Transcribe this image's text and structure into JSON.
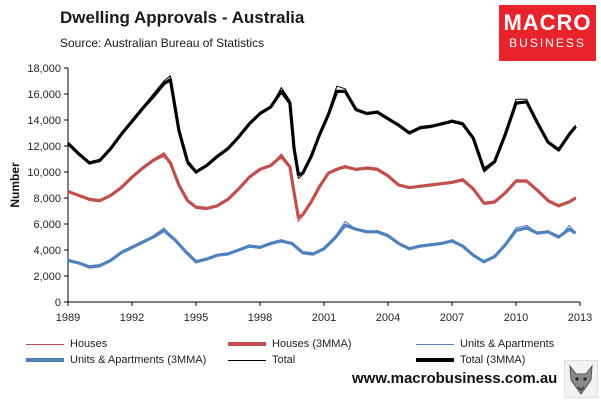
{
  "header": {
    "title": "Dwelling Approvals - Australia",
    "subtitle": "Source:  Australian Bureau of Statistics"
  },
  "logo": {
    "line1": "MACRO",
    "line2": "BUSINESS",
    "color": "#e8232c"
  },
  "footer": {
    "website": "www.macrobusiness.com.au",
    "mascot_icon": "wolf-icon"
  },
  "legend": [
    {
      "label": "Houses",
      "color": "#c0504d",
      "weight": "thin"
    },
    {
      "label": "Houses (3MMA)",
      "color": "#c0504d",
      "weight": "thick"
    },
    {
      "label": "Units & Apartments",
      "color": "#4f81bd",
      "weight": "thin"
    },
    {
      "label": "Units & Apartments (3MMA)",
      "color": "#4f81bd",
      "weight": "thick"
    },
    {
      "label": "Total",
      "color": "#000000",
      "weight": "thin"
    },
    {
      "label": "Total (3MMA)",
      "color": "#000000",
      "weight": "thick"
    }
  ],
  "chart_data": {
    "type": "line",
    "title": "Dwelling Approvals - Australia",
    "xlabel": "",
    "ylabel": "Number",
    "xlim": [
      1989,
      2013
    ],
    "ylim": [
      0,
      18000
    ],
    "xticks": [
      1989,
      1992,
      1995,
      1998,
      2001,
      2004,
      2007,
      2010,
      2013
    ],
    "yticks": [
      0,
      2000,
      4000,
      6000,
      8000,
      10000,
      12000,
      14000,
      16000,
      18000
    ],
    "ytick_labels": [
      "0",
      "2,000",
      "4,000",
      "6,000",
      "8,000",
      "10,000",
      "12,000",
      "14,000",
      "16,000",
      "18,000"
    ],
    "grid": false,
    "legend_position": "bottom",
    "series": [
      {
        "name": "Houses",
        "color": "#c0504d",
        "x": [
          1989.0,
          1989.5,
          1990.0,
          1990.5,
          1991.0,
          1991.5,
          1992.0,
          1992.5,
          1993.0,
          1993.5,
          1993.8,
          1994.2,
          1994.6,
          1995.0,
          1995.5,
          1996.0,
          1996.5,
          1997.0,
          1997.5,
          1998.0,
          1998.5,
          1999.0,
          1999.4,
          1999.6,
          1999.8,
          2000.0,
          2000.4,
          2000.8,
          2001.2,
          2001.6,
          2002.0,
          2002.5,
          2003.0,
          2003.5,
          2004.0,
          2004.5,
          2005.0,
          2005.5,
          2006.0,
          2006.5,
          2007.0,
          2007.5,
          2008.0,
          2008.5,
          2009.0,
          2009.5,
          2010.0,
          2010.5,
          2011.0,
          2011.5,
          2012.0,
          2012.5,
          2012.8
        ],
        "y": [
          8600,
          8200,
          7800,
          7700,
          8200,
          8900,
          9700,
          10400,
          11000,
          11500,
          10800,
          9000,
          7700,
          7200,
          7100,
          7400,
          7900,
          8700,
          9700,
          10300,
          10500,
          11400,
          10500,
          8200,
          6200,
          6600,
          7700,
          9000,
          10000,
          10300,
          10500,
          10200,
          10400,
          10300,
          9800,
          9000,
          8800,
          9000,
          9000,
          9100,
          9200,
          9500,
          8700,
          7500,
          7600,
          8400,
          9400,
          9400,
          8600,
          7700,
          7300,
          7700,
          8100
        ]
      },
      {
        "name": "Houses (3MMA)",
        "color": "#c0504d",
        "x": [
          1989.0,
          1989.5,
          1990.0,
          1990.5,
          1991.0,
          1991.5,
          1992.0,
          1992.5,
          1993.0,
          1993.5,
          1993.8,
          1994.2,
          1994.6,
          1995.0,
          1995.5,
          1996.0,
          1996.5,
          1997.0,
          1997.5,
          1998.0,
          1998.5,
          1999.0,
          1999.4,
          1999.6,
          1999.8,
          2000.0,
          2000.4,
          2000.8,
          2001.2,
          2001.6,
          2002.0,
          2002.5,
          2003.0,
          2003.5,
          2004.0,
          2004.5,
          2005.0,
          2005.5,
          2006.0,
          2006.5,
          2007.0,
          2007.5,
          2008.0,
          2008.5,
          2009.0,
          2009.5,
          2010.0,
          2010.5,
          2011.0,
          2011.5,
          2012.0,
          2012.5,
          2012.8
        ],
        "y": [
          8500,
          8200,
          7900,
          7800,
          8200,
          8800,
          9600,
          10300,
          10900,
          11300,
          10700,
          9000,
          7800,
          7300,
          7200,
          7400,
          7900,
          8700,
          9600,
          10200,
          10500,
          11200,
          10400,
          8400,
          6500,
          6700,
          7700,
          8900,
          9900,
          10200,
          10400,
          10200,
          10300,
          10200,
          9700,
          9000,
          8800,
          8900,
          9000,
          9100,
          9200,
          9400,
          8700,
          7600,
          7700,
          8400,
          9300,
          9300,
          8600,
          7800,
          7400,
          7700,
          8000
        ]
      },
      {
        "name": "Units & Apartments",
        "color": "#4f81bd",
        "x": [
          1989.0,
          1989.5,
          1990.0,
          1990.5,
          1991.0,
          1991.5,
          1992.0,
          1992.5,
          1993.0,
          1993.5,
          1994.0,
          1994.5,
          1995.0,
          1995.5,
          1996.0,
          1996.5,
          1997.0,
          1997.5,
          1998.0,
          1998.5,
          1999.0,
          1999.5,
          2000.0,
          2000.5,
          2001.0,
          2001.5,
          2002.0,
          2002.5,
          2003.0,
          2003.5,
          2004.0,
          2004.5,
          2005.0,
          2005.5,
          2006.0,
          2006.5,
          2007.0,
          2007.5,
          2008.0,
          2008.5,
          2009.0,
          2009.5,
          2010.0,
          2010.5,
          2011.0,
          2011.5,
          2012.0,
          2012.5,
          2012.8
        ],
        "y": [
          3300,
          3000,
          2600,
          2700,
          3200,
          3900,
          4300,
          4700,
          5100,
          5700,
          4800,
          3800,
          3000,
          3300,
          3600,
          3700,
          4000,
          4400,
          4200,
          4600,
          4800,
          4500,
          3700,
          3600,
          4100,
          5000,
          6200,
          5600,
          5400,
          5500,
          5200,
          4500,
          4000,
          4300,
          4400,
          4500,
          4800,
          4300,
          3600,
          3000,
          3500,
          4500,
          5700,
          5900,
          5300,
          5500,
          4900,
          5900,
          5300
        ]
      },
      {
        "name": "Units & Apartments (3MMA)",
        "color": "#4f81bd",
        "x": [
          1989.0,
          1989.5,
          1990.0,
          1990.5,
          1991.0,
          1991.5,
          1992.0,
          1992.5,
          1993.0,
          1993.5,
          1994.0,
          1994.5,
          1995.0,
          1995.5,
          1996.0,
          1996.5,
          1997.0,
          1997.5,
          1998.0,
          1998.5,
          1999.0,
          1999.5,
          2000.0,
          2000.5,
          2001.0,
          2001.5,
          2002.0,
          2002.5,
          2003.0,
          2003.5,
          2004.0,
          2004.5,
          2005.0,
          2005.5,
          2006.0,
          2006.5,
          2007.0,
          2007.5,
          2008.0,
          2008.5,
          2009.0,
          2009.5,
          2010.0,
          2010.5,
          2011.0,
          2011.5,
          2012.0,
          2012.5,
          2012.8
        ],
        "y": [
          3200,
          3000,
          2700,
          2800,
          3200,
          3800,
          4200,
          4600,
          5000,
          5500,
          4800,
          3900,
          3100,
          3300,
          3600,
          3700,
          4000,
          4300,
          4200,
          4500,
          4700,
          4500,
          3800,
          3700,
          4100,
          4900,
          5900,
          5600,
          5400,
          5400,
          5100,
          4500,
          4100,
          4300,
          4400,
          4500,
          4700,
          4300,
          3600,
          3100,
          3500,
          4400,
          5500,
          5700,
          5300,
          5400,
          5000,
          5600,
          5300
        ]
      },
      {
        "name": "Total",
        "color": "#000000",
        "x": [
          1989.0,
          1989.5,
          1990.0,
          1990.5,
          1991.0,
          1991.5,
          1992.0,
          1992.5,
          1993.0,
          1993.5,
          1993.8,
          1994.2,
          1994.6,
          1995.0,
          1995.5,
          1996.0,
          1996.5,
          1997.0,
          1997.5,
          1998.0,
          1998.5,
          1999.0,
          1999.4,
          1999.6,
          1999.8,
          2000.0,
          2000.4,
          2000.8,
          2001.2,
          2001.6,
          2002.0,
          2002.5,
          2003.0,
          2003.5,
          2004.0,
          2004.5,
          2005.0,
          2005.5,
          2006.0,
          2006.5,
          2007.0,
          2007.5,
          2008.0,
          2008.5,
          2009.0,
          2009.5,
          2010.0,
          2010.5,
          2011.0,
          2011.5,
          2012.0,
          2012.5,
          2012.8
        ],
        "y": [
          12300,
          11400,
          10600,
          10800,
          11800,
          13000,
          14000,
          15000,
          16000,
          17000,
          17400,
          13000,
          10600,
          9900,
          10500,
          11300,
          11800,
          12700,
          13800,
          14600,
          15000,
          16500,
          15500,
          11500,
          9500,
          9800,
          11200,
          13000,
          14600,
          16600,
          16400,
          14800,
          14500,
          14700,
          14200,
          13600,
          13000,
          13500,
          13600,
          13700,
          14000,
          13800,
          12600,
          10000,
          10700,
          13000,
          15600,
          15600,
          13800,
          12200,
          11600,
          13000,
          13600
        ]
      },
      {
        "name": "Total (3MMA)",
        "color": "#000000",
        "x": [
          1989.0,
          1989.5,
          1990.0,
          1990.5,
          1991.0,
          1991.5,
          1992.0,
          1992.5,
          1993.0,
          1993.5,
          1993.8,
          1994.2,
          1994.6,
          1995.0,
          1995.5,
          1996.0,
          1996.5,
          1997.0,
          1997.5,
          1998.0,
          1998.5,
          1999.0,
          1999.4,
          1999.6,
          1999.8,
          2000.0,
          2000.4,
          2000.8,
          2001.2,
          2001.6,
          2002.0,
          2002.5,
          2003.0,
          2003.5,
          2004.0,
          2004.5,
          2005.0,
          2005.5,
          2006.0,
          2006.5,
          2007.0,
          2007.5,
          2008.0,
          2008.5,
          2009.0,
          2009.5,
          2010.0,
          2010.5,
          2011.0,
          2011.5,
          2012.0,
          2012.5,
          2012.8
        ],
        "y": [
          12200,
          11400,
          10700,
          10900,
          11800,
          12900,
          13900,
          14900,
          15800,
          16800,
          17100,
          13200,
          10800,
          10000,
          10500,
          11200,
          11800,
          12700,
          13700,
          14500,
          15000,
          16200,
          15300,
          11800,
          9800,
          9900,
          11200,
          12900,
          14400,
          16200,
          16200,
          14800,
          14500,
          14600,
          14100,
          13600,
          13000,
          13400,
          13500,
          13700,
          13900,
          13700,
          12600,
          10200,
          10800,
          12900,
          15300,
          15400,
          13800,
          12300,
          11700,
          12900,
          13500
        ]
      }
    ]
  }
}
